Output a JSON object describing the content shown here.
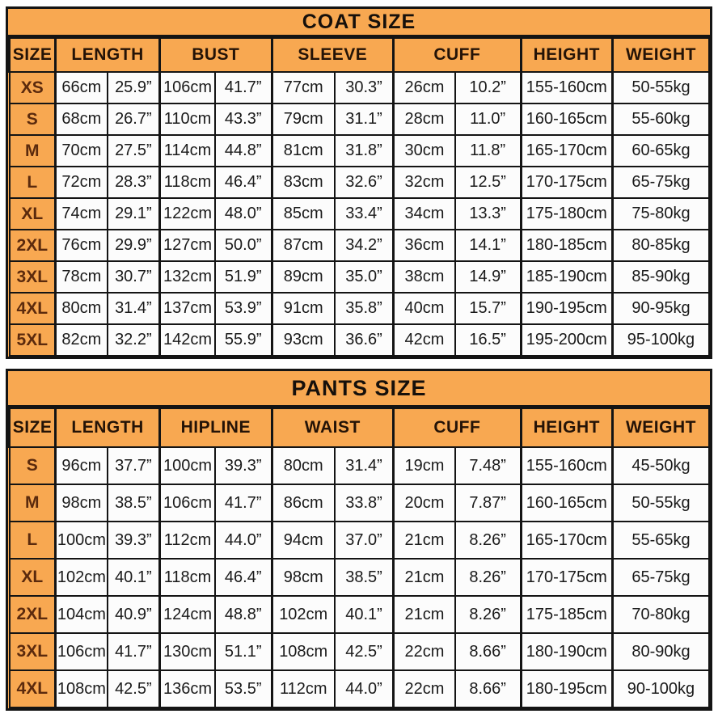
{
  "colors": {
    "table_orange": "#F8A851",
    "border_black": "#141414",
    "cell_white": "#FCFCFC",
    "size_label_brown": "#5b2a0d"
  },
  "chart_data": [
    {
      "type": "table",
      "title": "COAT SIZE",
      "columns": [
        {
          "label": "SIZE",
          "span": 1
        },
        {
          "label": "LENGTH",
          "span": 2
        },
        {
          "label": "BUST",
          "span": 2
        },
        {
          "label": "SLEEVE",
          "span": 2
        },
        {
          "label": "CUFF",
          "span": 2
        },
        {
          "label": "HEIGHT",
          "span": 1
        },
        {
          "label": "WEIGHT",
          "span": 1
        }
      ],
      "rows": [
        [
          "XS",
          "66cm",
          "25.9”",
          "106cm",
          "41.7”",
          "77cm",
          "30.3”",
          "26cm",
          "10.2”",
          "155-160cm",
          "50-55kg"
        ],
        [
          "S",
          "68cm",
          "26.7”",
          "110cm",
          "43.3”",
          "79cm",
          "31.1”",
          "28cm",
          "11.0”",
          "160-165cm",
          "55-60kg"
        ],
        [
          "M",
          "70cm",
          "27.5”",
          "114cm",
          "44.8”",
          "81cm",
          "31.8”",
          "30cm",
          "11.8”",
          "165-170cm",
          "60-65kg"
        ],
        [
          "L",
          "72cm",
          "28.3”",
          "118cm",
          "46.4”",
          "83cm",
          "32.6”",
          "32cm",
          "12.5”",
          "170-175cm",
          "65-75kg"
        ],
        [
          "XL",
          "74cm",
          "29.1”",
          "122cm",
          "48.0”",
          "85cm",
          "33.4”",
          "34cm",
          "13.3”",
          "175-180cm",
          "75-80kg"
        ],
        [
          "2XL",
          "76cm",
          "29.9”",
          "127cm",
          "50.0”",
          "87cm",
          "34.2”",
          "36cm",
          "14.1”",
          "180-185cm",
          "80-85kg"
        ],
        [
          "3XL",
          "78cm",
          "30.7”",
          "132cm",
          "51.9”",
          "89cm",
          "35.0”",
          "38cm",
          "14.9”",
          "185-190cm",
          "85-90kg"
        ],
        [
          "4XL",
          "80cm",
          "31.4”",
          "137cm",
          "53.9”",
          "91cm",
          "35.8”",
          "40cm",
          "15.7”",
          "190-195cm",
          "90-95kg"
        ],
        [
          "5XL",
          "82cm",
          "32.2”",
          "142cm",
          "55.9”",
          "93cm",
          "36.6”",
          "42cm",
          "16.5”",
          "195-200cm",
          "95-100kg"
        ]
      ]
    },
    {
      "type": "table",
      "title": "PANTS SIZE",
      "columns": [
        {
          "label": "SIZE",
          "span": 1
        },
        {
          "label": "LENGTH",
          "span": 2
        },
        {
          "label": "HIPLINE",
          "span": 2
        },
        {
          "label": "WAIST",
          "span": 2
        },
        {
          "label": "CUFF",
          "span": 2
        },
        {
          "label": "HEIGHT",
          "span": 1
        },
        {
          "label": "WEIGHT",
          "span": 1
        }
      ],
      "rows": [
        [
          "S",
          "96cm",
          "37.7”",
          "100cm",
          "39.3”",
          "80cm",
          "31.4”",
          "19cm",
          "7.48”",
          "155-160cm",
          "45-50kg"
        ],
        [
          "M",
          "98cm",
          "38.5”",
          "106cm",
          "41.7”",
          "86cm",
          "33.8”",
          "20cm",
          "7.87”",
          "160-165cm",
          "50-55kg"
        ],
        [
          "L",
          "100cm",
          "39.3”",
          "112cm",
          "44.0”",
          "94cm",
          "37.0”",
          "21cm",
          "8.26”",
          "165-170cm",
          "55-65kg"
        ],
        [
          "XL",
          "102cm",
          "40.1”",
          "118cm",
          "46.4”",
          "98cm",
          "38.5”",
          "21cm",
          "8.26”",
          "170-175cm",
          "65-75kg"
        ],
        [
          "2XL",
          "104cm",
          "40.9”",
          "124cm",
          "48.8”",
          "102cm",
          "40.1”",
          "21cm",
          "8.26”",
          "175-185cm",
          "70-80kg"
        ],
        [
          "3XL",
          "106cm",
          "41.7”",
          "130cm",
          "51.1”",
          "108cm",
          "42.5”",
          "22cm",
          "8.66”",
          "180-190cm",
          "80-90kg"
        ],
        [
          "4XL",
          "108cm",
          "42.5”",
          "136cm",
          "53.5”",
          "112cm",
          "44.0”",
          "22cm",
          "8.66”",
          "180-195cm",
          "90-100kg"
        ]
      ]
    }
  ]
}
